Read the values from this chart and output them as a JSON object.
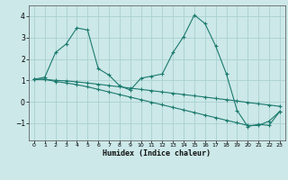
{
  "xlabel": "Humidex (Indice chaleur)",
  "xlim": [
    -0.5,
    23.5
  ],
  "ylim": [
    -1.8,
    4.5
  ],
  "xticks": [
    0,
    1,
    2,
    3,
    4,
    5,
    6,
    7,
    8,
    9,
    10,
    11,
    12,
    13,
    14,
    15,
    16,
    17,
    18,
    19,
    20,
    21,
    22,
    23
  ],
  "yticks": [
    -1,
    0,
    1,
    2,
    3,
    4
  ],
  "background_color": "#cce8e8",
  "grid_color": "#aad0d0",
  "line_color": "#1a7a6e",
  "line1_x": [
    0,
    1,
    2,
    3,
    4,
    5,
    6,
    7,
    8,
    9,
    10,
    11,
    12,
    13,
    14,
    15,
    16,
    17,
    18,
    19,
    20,
    21,
    22,
    23
  ],
  "line1_y": [
    1.05,
    1.15,
    2.3,
    2.7,
    3.45,
    3.35,
    1.55,
    1.25,
    0.75,
    0.55,
    1.1,
    1.2,
    1.3,
    2.3,
    3.05,
    4.05,
    3.65,
    2.6,
    1.3,
    -0.4,
    -1.15,
    -1.05,
    -1.1,
    -0.45
  ],
  "line2_x": [
    0,
    1,
    2,
    3,
    4,
    5,
    6,
    7,
    8,
    9,
    10,
    11,
    12,
    13,
    14,
    15,
    16,
    17,
    18,
    19,
    20,
    21,
    22,
    23
  ],
  "line2_y": [
    1.05,
    1.05,
    1.0,
    0.98,
    0.93,
    0.88,
    0.82,
    0.76,
    0.7,
    0.64,
    0.58,
    0.52,
    0.46,
    0.4,
    0.34,
    0.28,
    0.22,
    0.16,
    0.1,
    0.04,
    -0.03,
    -0.09,
    -0.15,
    -0.21
  ],
  "line3_x": [
    0,
    1,
    2,
    3,
    4,
    5,
    6,
    7,
    8,
    9,
    10,
    11,
    12,
    13,
    14,
    15,
    16,
    17,
    18,
    19,
    20,
    21,
    22,
    23
  ],
  "line3_y": [
    1.05,
    1.05,
    0.95,
    0.88,
    0.8,
    0.7,
    0.58,
    0.46,
    0.34,
    0.22,
    0.1,
    -0.02,
    -0.14,
    -0.26,
    -0.38,
    -0.5,
    -0.62,
    -0.74,
    -0.86,
    -0.98,
    -1.1,
    -1.1,
    -0.9,
    -0.45
  ]
}
